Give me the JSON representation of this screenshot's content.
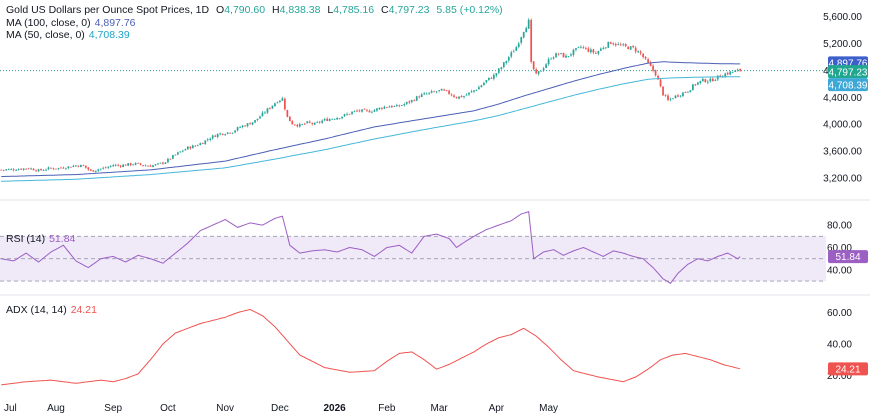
{
  "colors": {
    "up": "#26a69a",
    "down": "#ef5350",
    "ma100": "#4a5fb5",
    "ma50": "#45b7d9",
    "rsi": "#9c5fc4",
    "adx": "#ef5350",
    "last_price": "#2f9c8f",
    "grid_text": "#131722",
    "rsi_band": "#efe9f8"
  },
  "header": {
    "title": "Gold US Dollars per Ounce Spot Prices, 1D",
    "open_label": "O",
    "open": "4,790.60",
    "high_label": "H",
    "high": "4,838.38",
    "low_label": "L",
    "low": "4,785.16",
    "close_label": "C",
    "close": "4,797.23",
    "change": "5.85 (+0.12%)",
    "ma100_label": "MA (100, close, 0)",
    "ma100_value": "4,897.76",
    "ma50_label": "MA (50, close, 0)",
    "ma50_value": "4,708.39",
    "rsi_label": "RSI (14)",
    "rsi_value": "51.84",
    "adx_label": "ADX (14, 14)",
    "adx_value": "24.21"
  },
  "chart_data": [
    {
      "type": "candlestick",
      "title": "Gold US Dollars per Ounce Spot Prices, 1D",
      "x_tick_labels": [
        "Jul",
        "Aug",
        "Sep",
        "Oct",
        "Nov",
        "Dec",
        "2026",
        "Feb",
        "Mar",
        "Apr",
        "May"
      ],
      "y_tick_labels": [
        "5,600.00",
        "5,200.00",
        "4,800.00",
        "4,400.00",
        "4,000.00",
        "3,600.00",
        "3,200.00"
      ],
      "y_ticks": [
        5600,
        5200,
        4800,
        4400,
        4000,
        3600,
        3200
      ],
      "ylim": [
        3020,
        5760
      ],
      "price_anchors": [
        [
          0,
          3320
        ],
        [
          6,
          3330
        ],
        [
          11,
          3345
        ],
        [
          15,
          3310
        ],
        [
          19,
          3340
        ],
        [
          23,
          3345
        ],
        [
          27,
          3365
        ],
        [
          30,
          3385
        ],
        [
          33,
          3380
        ],
        [
          36,
          3300
        ],
        [
          39,
          3330
        ],
        [
          42,
          3350
        ],
        [
          45,
          3390
        ],
        [
          48,
          3385
        ],
        [
          51,
          3400
        ],
        [
          54,
          3410
        ],
        [
          57,
          3390
        ],
        [
          60,
          3380
        ],
        [
          63,
          3400
        ],
        [
          66,
          3440
        ],
        [
          69,
          3520
        ],
        [
          72,
          3590
        ],
        [
          75,
          3650
        ],
        [
          78,
          3680
        ],
        [
          81,
          3730
        ],
        [
          84,
          3800
        ],
        [
          87,
          3850
        ],
        [
          90,
          3870
        ],
        [
          93,
          3890
        ],
        [
          96,
          3960
        ],
        [
          99,
          4000
        ],
        [
          102,
          4050
        ],
        [
          105,
          4150
        ],
        [
          108,
          4250
        ],
        [
          111,
          4350
        ],
        [
          113,
          4380
        ],
        [
          115,
          4100
        ],
        [
          117,
          4010
        ],
        [
          120,
          3980
        ],
        [
          123,
          4020
        ],
        [
          126,
          4000
        ],
        [
          129,
          4050
        ],
        [
          132,
          4080
        ],
        [
          135,
          4100
        ],
        [
          138,
          4130
        ],
        [
          141,
          4180
        ],
        [
          144,
          4200
        ],
        [
          147,
          4190
        ],
        [
          150,
          4210
        ],
        [
          153,
          4250
        ],
        [
          156,
          4270
        ],
        [
          159,
          4260
        ],
        [
          162,
          4300
        ],
        [
          165,
          4350
        ],
        [
          168,
          4420
        ],
        [
          171,
          4450
        ],
        [
          174,
          4480
        ],
        [
          177,
          4500
        ],
        [
          180,
          4460
        ],
        [
          183,
          4400
        ],
        [
          186,
          4420
        ],
        [
          189,
          4480
        ],
        [
          192,
          4550
        ],
        [
          195,
          4650
        ],
        [
          198,
          4720
        ],
        [
          201,
          4850
        ],
        [
          204,
          5000
        ],
        [
          207,
          5150
        ],
        [
          210,
          5400
        ],
        [
          212,
          5530
        ],
        [
          213,
          4900
        ],
        [
          215,
          4730
        ],
        [
          218,
          4850
        ],
        [
          221,
          5000
        ],
        [
          224,
          5050
        ],
        [
          227,
          5000
        ],
        [
          230,
          5080
        ],
        [
          233,
          5150
        ],
        [
          236,
          5100
        ],
        [
          239,
          5060
        ],
        [
          242,
          5150
        ],
        [
          245,
          5220
        ],
        [
          248,
          5180
        ],
        [
          251,
          5150
        ],
        [
          254,
          5130
        ],
        [
          257,
          5050
        ],
        [
          260,
          4900
        ],
        [
          263,
          4750
        ],
        [
          266,
          4450
        ],
        [
          268,
          4350
        ],
        [
          270,
          4400
        ],
        [
          273,
          4450
        ],
        [
          276,
          4500
        ],
        [
          279,
          4600
        ],
        [
          282,
          4650
        ],
        [
          285,
          4650
        ],
        [
          288,
          4700
        ],
        [
          291,
          4750
        ],
        [
          294,
          4780
        ],
        [
          297,
          4800
        ]
      ],
      "ma100_anchors": [
        [
          0,
          3220
        ],
        [
          30,
          3250
        ],
        [
          60,
          3320
        ],
        [
          90,
          3450
        ],
        [
          110,
          3620
        ],
        [
          130,
          3780
        ],
        [
          150,
          3960
        ],
        [
          170,
          4080
        ],
        [
          190,
          4200
        ],
        [
          200,
          4300
        ],
        [
          210,
          4420
        ],
        [
          220,
          4530
        ],
        [
          230,
          4640
        ],
        [
          240,
          4740
        ],
        [
          250,
          4830
        ],
        [
          260,
          4910
        ],
        [
          266,
          4930
        ],
        [
          272,
          4920
        ],
        [
          280,
          4910
        ],
        [
          290,
          4900
        ],
        [
          297,
          4897.76
        ]
      ],
      "ma50_anchors": [
        [
          0,
          3150
        ],
        [
          30,
          3180
        ],
        [
          60,
          3250
        ],
        [
          90,
          3350
        ],
        [
          110,
          3480
        ],
        [
          130,
          3620
        ],
        [
          150,
          3780
        ],
        [
          170,
          3920
        ],
        [
          190,
          4050
        ],
        [
          200,
          4130
        ],
        [
          210,
          4230
        ],
        [
          220,
          4330
        ],
        [
          230,
          4430
        ],
        [
          240,
          4520
        ],
        [
          250,
          4600
        ],
        [
          260,
          4670
        ],
        [
          270,
          4690
        ],
        [
          280,
          4700
        ],
        [
          290,
          4705
        ],
        [
          297,
          4708.39
        ]
      ],
      "last_values": {
        "ma100": 4897.76,
        "close": 4797.23,
        "ma50": 4708.39
      },
      "last_labels": {
        "ma100": "4,897.76",
        "close": "4,797.23",
        "ma50": "4,708.39"
      },
      "n_bars": 298
    },
    {
      "type": "line",
      "name": "RSI (14)",
      "y_tick_labels": [
        "80.00",
        "60.00",
        "40.00"
      ],
      "y_ticks": [
        80,
        60,
        40
      ],
      "bands": [
        70,
        50,
        30
      ],
      "ylim": [
        22,
        98
      ],
      "anchors": [
        [
          0,
          50
        ],
        [
          5,
          48
        ],
        [
          10,
          55
        ],
        [
          15,
          47
        ],
        [
          20,
          56
        ],
        [
          25,
          62
        ],
        [
          30,
          48
        ],
        [
          35,
          42
        ],
        [
          40,
          50
        ],
        [
          45,
          52
        ],
        [
          50,
          47
        ],
        [
          55,
          53
        ],
        [
          60,
          50
        ],
        [
          65,
          46
        ],
        [
          70,
          55
        ],
        [
          75,
          64
        ],
        [
          80,
          75
        ],
        [
          85,
          80
        ],
        [
          90,
          85
        ],
        [
          95,
          78
        ],
        [
          100,
          82
        ],
        [
          105,
          80
        ],
        [
          110,
          86
        ],
        [
          113,
          88
        ],
        [
          116,
          62
        ],
        [
          120,
          55
        ],
        [
          125,
          57
        ],
        [
          130,
          58
        ],
        [
          135,
          56
        ],
        [
          140,
          60
        ],
        [
          145,
          58
        ],
        [
          150,
          52
        ],
        [
          155,
          60
        ],
        [
          160,
          62
        ],
        [
          165,
          55
        ],
        [
          170,
          70
        ],
        [
          175,
          72
        ],
        [
          180,
          68
        ],
        [
          183,
          60
        ],
        [
          187,
          66
        ],
        [
          190,
          70
        ],
        [
          195,
          76
        ],
        [
          200,
          80
        ],
        [
          205,
          84
        ],
        [
          209,
          90
        ],
        [
          212,
          92
        ],
        [
          214,
          50
        ],
        [
          218,
          56
        ],
        [
          222,
          58
        ],
        [
          226,
          53
        ],
        [
          230,
          57
        ],
        [
          234,
          60
        ],
        [
          238,
          56
        ],
        [
          242,
          52
        ],
        [
          246,
          57
        ],
        [
          250,
          55
        ],
        [
          254,
          52
        ],
        [
          258,
          50
        ],
        [
          262,
          42
        ],
        [
          266,
          32
        ],
        [
          269,
          28
        ],
        [
          272,
          37
        ],
        [
          276,
          45
        ],
        [
          280,
          50
        ],
        [
          284,
          48
        ],
        [
          288,
          52
        ],
        [
          292,
          55
        ],
        [
          296,
          50
        ],
        [
          297,
          51.84
        ]
      ],
      "last_label": "51.84"
    },
    {
      "type": "line",
      "name": "ADX (14, 14)",
      "y_tick_labels": [
        "60.00",
        "40.00",
        "20.00"
      ],
      "y_ticks": [
        60,
        40,
        20
      ],
      "ylim": [
        12,
        68
      ],
      "anchors": [
        [
          0,
          14
        ],
        [
          10,
          16
        ],
        [
          20,
          17
        ],
        [
          30,
          15
        ],
        [
          40,
          17
        ],
        [
          45,
          16
        ],
        [
          50,
          18
        ],
        [
          55,
          21
        ],
        [
          60,
          30
        ],
        [
          65,
          40
        ],
        [
          70,
          47
        ],
        [
          75,
          50
        ],
        [
          80,
          53
        ],
        [
          85,
          55
        ],
        [
          90,
          57
        ],
        [
          95,
          60
        ],
        [
          100,
          62
        ],
        [
          105,
          58
        ],
        [
          110,
          51
        ],
        [
          115,
          42
        ],
        [
          120,
          33
        ],
        [
          130,
          25
        ],
        [
          140,
          22
        ],
        [
          150,
          23
        ],
        [
          155,
          29
        ],
        [
          160,
          34
        ],
        [
          165,
          35
        ],
        [
          170,
          30
        ],
        [
          175,
          24
        ],
        [
          180,
          27
        ],
        [
          185,
          31
        ],
        [
          190,
          35
        ],
        [
          195,
          40
        ],
        [
          200,
          44
        ],
        [
          205,
          46
        ],
        [
          210,
          50
        ],
        [
          215,
          45
        ],
        [
          220,
          38
        ],
        [
          225,
          30
        ],
        [
          230,
          23
        ],
        [
          240,
          19
        ],
        [
          250,
          16
        ],
        [
          255,
          19
        ],
        [
          260,
          24
        ],
        [
          265,
          30
        ],
        [
          270,
          33
        ],
        [
          275,
          34
        ],
        [
          280,
          32
        ],
        [
          285,
          30
        ],
        [
          290,
          27
        ],
        [
          297,
          24.21
        ]
      ],
      "last_label": "24.21"
    }
  ]
}
